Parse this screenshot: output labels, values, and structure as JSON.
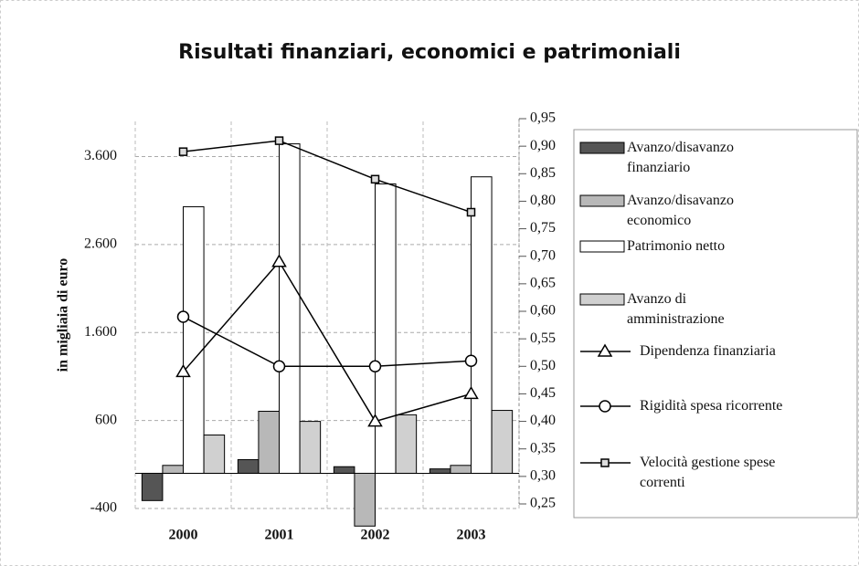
{
  "chart_data": {
    "type": "bar-line",
    "title": "Risultati finanziari, economici e patrimoniali",
    "y_label": "in migliaia di euro",
    "categories": [
      "2000",
      "2001",
      "2002",
      "2003"
    ],
    "ylim": [
      -400,
      4000
    ],
    "yticks": [
      -400,
      600,
      {
        "value": 1600,
        "label": "1.600"
      },
      {
        "value": 2600,
        "label": "2.600"
      },
      {
        "value": 3600,
        "label": "3.600"
      }
    ],
    "y2lim": [
      0.25,
      0.95
    ],
    "y2ticks": [
      {
        "value": 0.95,
        "label": "0,95"
      },
      {
        "value": 0.9,
        "label": "0,90"
      },
      {
        "value": 0.85,
        "label": "0,85"
      },
      {
        "value": 0.8,
        "label": "0,80"
      },
      {
        "value": 0.75,
        "label": "0,75"
      },
      {
        "value": 0.7,
        "label": "0,70"
      },
      {
        "value": 0.65,
        "label": "0,65"
      },
      {
        "value": 0.6,
        "label": "0,60"
      },
      {
        "value": 0.55,
        "label": "0,55"
      },
      {
        "value": 0.5,
        "label": "0,50"
      },
      {
        "value": 0.45,
        "label": "0,45"
      },
      {
        "value": 0.4,
        "label": "0,40"
      },
      {
        "value": 0.35,
        "label": "0,35"
      },
      {
        "value": 0.3,
        "label": "0,30"
      },
      {
        "value": 0.25,
        "label": "0,25"
      }
    ],
    "grid": true,
    "legend": "right",
    "series": [
      {
        "name": "Avanzo/disavanzo finanziario",
        "type": "bar",
        "color": "#555555",
        "values": [
          -310,
          155,
          75,
          50
        ]
      },
      {
        "name": "Avanzo/disavanzo economico",
        "type": "bar",
        "color": "#b8b8b8",
        "values": [
          90,
          705,
          -600,
          90
        ]
      },
      {
        "name": "Patrimonio netto",
        "type": "bar",
        "color": "#ffffff",
        "values": [
          3030,
          3745,
          3290,
          3370
        ]
      },
      {
        "name": "Avanzo di amministrazione",
        "type": "bar",
        "color": "#d0d0d0",
        "values": [
          435,
          590,
          665,
          715
        ]
      },
      {
        "name": "Dipendenza finanziaria",
        "type": "line",
        "marker": "triangle",
        "axis": "y2",
        "color": "#000000",
        "values": [
          0.49,
          0.69,
          0.4,
          0.45
        ]
      },
      {
        "name": "Rigidità spesa ricorrente",
        "type": "line",
        "marker": "circle",
        "axis": "y2",
        "color": "#000000",
        "values": [
          0.59,
          0.5,
          0.5,
          0.51
        ]
      },
      {
        "name": "Velocità gestione spese correnti",
        "type": "line",
        "marker": "square",
        "axis": "y2",
        "color": "#000000",
        "values": [
          0.89,
          0.91,
          0.84,
          0.78
        ]
      }
    ]
  }
}
